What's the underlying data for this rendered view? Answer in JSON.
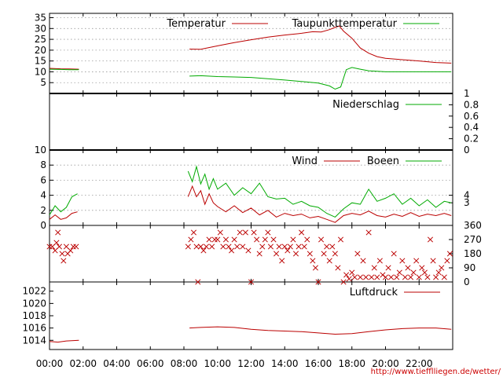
{
  "source_url": "http://www.tiefflliegen.de/wetter/",
  "x_axis": {
    "type": "time",
    "range": [
      "00:00",
      "24:00"
    ],
    "ticks": [
      "00:00",
      "02:00",
      "04:00",
      "06:00",
      "08:00",
      "10:00",
      "12:00",
      "14:00",
      "16:00",
      "18:00",
      "20:00",
      "22:00"
    ]
  },
  "chart_data": [
    {
      "type": "line",
      "panel": "temperature",
      "y_axis_side": "left",
      "ylim": [
        0,
        37
      ],
      "y_ticks": [
        5,
        10,
        15,
        20,
        25,
        30,
        35
      ],
      "grid": true,
      "legend_placement": "top",
      "series": [
        {
          "name": "Temperatur",
          "color": "#bb0000",
          "points": [
            [
              "00:00",
              11.6
            ],
            [
              "00:40",
              11.4
            ],
            [
              "01:10",
              11.3
            ],
            [
              "01:45",
              11.2
            ],
            [
              "08:20",
              20.5
            ],
            [
              "09:00",
              20.4
            ],
            [
              "10:00",
              22.0
            ],
            [
              "11:00",
              23.5
            ],
            [
              "12:00",
              24.8
            ],
            [
              "13:00",
              26.0
            ],
            [
              "14:00",
              27.0
            ],
            [
              "15:00",
              27.8
            ],
            [
              "15:40",
              28.5
            ],
            [
              "16:10",
              28.4
            ],
            [
              "16:40",
              29.5
            ],
            [
              "17:00",
              30.5
            ],
            [
              "17:15",
              31.2
            ],
            [
              "17:30",
              28.8
            ],
            [
              "18:00",
              25.5
            ],
            [
              "18:30",
              21.0
            ],
            [
              "19:00",
              18.6
            ],
            [
              "19:30",
              17.0
            ],
            [
              "20:00",
              16.2
            ],
            [
              "21:00",
              15.6
            ],
            [
              "22:00",
              15.0
            ],
            [
              "23:00",
              14.3
            ],
            [
              "23:55",
              14.0
            ]
          ]
        },
        {
          "name": "Taupunkttemperatur",
          "color": "#00aa00",
          "points": [
            [
              "00:00",
              11.2
            ],
            [
              "00:40",
              11.1
            ],
            [
              "01:10",
              11.0
            ],
            [
              "01:45",
              11.0
            ],
            [
              "08:20",
              8.0
            ],
            [
              "09:00",
              8.2
            ],
            [
              "10:00",
              7.8
            ],
            [
              "11:00",
              7.6
            ],
            [
              "12:00",
              7.4
            ],
            [
              "13:00",
              6.8
            ],
            [
              "14:00",
              6.2
            ],
            [
              "15:00",
              5.5
            ],
            [
              "16:00",
              4.8
            ],
            [
              "16:40",
              3.5
            ],
            [
              "17:00",
              2.0
            ],
            [
              "17:20",
              3.0
            ],
            [
              "17:40",
              11.0
            ],
            [
              "18:00",
              12.0
            ],
            [
              "18:30",
              11.2
            ],
            [
              "19:00",
              10.5
            ],
            [
              "20:00",
              10.0
            ],
            [
              "21:00",
              10.0
            ],
            [
              "22:00",
              10.0
            ],
            [
              "23:55",
              10.0
            ]
          ]
        }
      ]
    },
    {
      "type": "line",
      "panel": "precipitation",
      "y_axis_side": "right",
      "ylim": [
        0,
        1
      ],
      "y_ticks": [
        0,
        0.2,
        0.4,
        0.6,
        0.8,
        1
      ],
      "grid": false,
      "legend_placement": "top-right",
      "series": [
        {
          "name": "Niederschlag",
          "color": "#00aa00",
          "points": [
            [
              "00:00",
              0
            ],
            [
              "24:00",
              0
            ]
          ]
        }
      ]
    },
    {
      "type": "line",
      "panel": "wind",
      "y_axis_side": "left",
      "ylim": [
        0,
        10
      ],
      "y_ticks": [
        0,
        2,
        4,
        6,
        8,
        10
      ],
      "right_ticks": [
        3,
        4
      ],
      "grid": true,
      "legend_placement": "top-right",
      "series": [
        {
          "name": "Wind",
          "color": "#bb0000",
          "points": [
            [
              "00:00",
              0.8
            ],
            [
              "00:20",
              1.4
            ],
            [
              "00:40",
              0.8
            ],
            [
              "01:00",
              1.0
            ],
            [
              "01:20",
              1.6
            ],
            [
              "01:40",
              1.8
            ],
            [
              "08:15",
              3.8
            ],
            [
              "08:30",
              5.2
            ],
            [
              "08:45",
              3.8
            ],
            [
              "09:00",
              4.6
            ],
            [
              "09:15",
              2.8
            ],
            [
              "09:30",
              4.2
            ],
            [
              "09:45",
              3.0
            ],
            [
              "10:00",
              2.5
            ],
            [
              "10:30",
              1.8
            ],
            [
              "11:00",
              2.6
            ],
            [
              "11:30",
              1.7
            ],
            [
              "12:00",
              2.3
            ],
            [
              "12:30",
              1.4
            ],
            [
              "13:00",
              2.0
            ],
            [
              "13:30",
              1.1
            ],
            [
              "14:00",
              1.6
            ],
            [
              "14:30",
              1.3
            ],
            [
              "15:00",
              1.5
            ],
            [
              "15:30",
              1.0
            ],
            [
              "16:00",
              1.2
            ],
            [
              "16:30",
              0.8
            ],
            [
              "17:00",
              0.4
            ],
            [
              "17:30",
              1.3
            ],
            [
              "18:00",
              1.6
            ],
            [
              "18:30",
              1.4
            ],
            [
              "19:00",
              1.9
            ],
            [
              "19:30",
              1.3
            ],
            [
              "20:00",
              1.1
            ],
            [
              "20:30",
              1.5
            ],
            [
              "21:00",
              1.2
            ],
            [
              "21:30",
              1.7
            ],
            [
              "22:00",
              1.2
            ],
            [
              "22:30",
              1.5
            ],
            [
              "23:00",
              1.3
            ],
            [
              "23:30",
              1.6
            ],
            [
              "23:55",
              1.3
            ]
          ]
        },
        {
          "name": "Boeen",
          "color": "#00aa00",
          "points": [
            [
              "00:00",
              1.4
            ],
            [
              "00:20",
              2.6
            ],
            [
              "00:40",
              1.8
            ],
            [
              "01:00",
              2.4
            ],
            [
              "01:20",
              3.8
            ],
            [
              "01:40",
              4.2
            ],
            [
              "08:15",
              7.2
            ],
            [
              "08:30",
              5.8
            ],
            [
              "08:45",
              7.8
            ],
            [
              "09:00",
              5.5
            ],
            [
              "09:15",
              6.8
            ],
            [
              "09:30",
              4.8
            ],
            [
              "09:45",
              6.2
            ],
            [
              "10:00",
              4.8
            ],
            [
              "10:30",
              5.6
            ],
            [
              "11:00",
              4.0
            ],
            [
              "11:30",
              5.0
            ],
            [
              "12:00",
              4.2
            ],
            [
              "12:30",
              5.6
            ],
            [
              "13:00",
              3.8
            ],
            [
              "13:30",
              3.5
            ],
            [
              "14:00",
              3.6
            ],
            [
              "14:30",
              2.8
            ],
            [
              "15:00",
              3.2
            ],
            [
              "15:30",
              2.6
            ],
            [
              "16:00",
              2.4
            ],
            [
              "16:30",
              1.6
            ],
            [
              "17:00",
              1.1
            ],
            [
              "17:30",
              2.2
            ],
            [
              "18:00",
              3.0
            ],
            [
              "18:30",
              2.8
            ],
            [
              "19:00",
              4.8
            ],
            [
              "19:30",
              3.2
            ],
            [
              "20:00",
              3.6
            ],
            [
              "20:30",
              4.2
            ],
            [
              "21:00",
              2.8
            ],
            [
              "21:30",
              3.6
            ],
            [
              "22:00",
              2.6
            ],
            [
              "22:30",
              3.4
            ],
            [
              "23:00",
              2.4
            ],
            [
              "23:30",
              3.2
            ],
            [
              "23:55",
              3.0
            ]
          ]
        }
      ]
    },
    {
      "type": "scatter",
      "panel": "wind_direction",
      "y_axis_side": "right",
      "ylim": [
        0,
        360
      ],
      "y_ticks": [
        0,
        90,
        180,
        270,
        360
      ],
      "marker": "x",
      "color": "#bb0000",
      "points": [
        [
          "00:00",
          225
        ],
        [
          "00:10",
          225
        ],
        [
          "00:20",
          200
        ],
        [
          "00:25",
          250
        ],
        [
          "00:35",
          225
        ],
        [
          "00:45",
          180
        ],
        [
          "00:50",
          135
        ],
        [
          "01:00",
          225
        ],
        [
          "01:05",
          180
        ],
        [
          "01:15",
          200
        ],
        [
          "01:25",
          225
        ],
        [
          "01:35",
          225
        ],
        [
          "00:30",
          315
        ],
        [
          "08:15",
          225
        ],
        [
          "08:25",
          270
        ],
        [
          "08:35",
          315
        ],
        [
          "08:45",
          225
        ],
        [
          "08:50",
          0
        ],
        [
          "09:00",
          225
        ],
        [
          "09:10",
          200
        ],
        [
          "09:20",
          225
        ],
        [
          "09:30",
          270
        ],
        [
          "09:40",
          225
        ],
        [
          "09:50",
          270
        ],
        [
          "10:00",
          270
        ],
        [
          "10:10",
          315
        ],
        [
          "10:20",
          225
        ],
        [
          "10:30",
          270
        ],
        [
          "10:40",
          225
        ],
        [
          "10:50",
          200
        ],
        [
          "11:00",
          270
        ],
        [
          "11:10",
          225
        ],
        [
          "11:20",
          315
        ],
        [
          "11:30",
          225
        ],
        [
          "11:40",
          315
        ],
        [
          "11:50",
          200
        ],
        [
          "12:00",
          0
        ],
        [
          "12:10",
          315
        ],
        [
          "12:20",
          270
        ],
        [
          "12:30",
          180
        ],
        [
          "12:40",
          225
        ],
        [
          "12:50",
          270
        ],
        [
          "13:00",
          315
        ],
        [
          "13:10",
          225
        ],
        [
          "13:20",
          270
        ],
        [
          "13:30",
          180
        ],
        [
          "13:40",
          225
        ],
        [
          "13:50",
          135
        ],
        [
          "14:00",
          225
        ],
        [
          "14:10",
          200
        ],
        [
          "14:20",
          225
        ],
        [
          "14:30",
          270
        ],
        [
          "14:40",
          180
        ],
        [
          "14:50",
          225
        ],
        [
          "15:00",
          315
        ],
        [
          "15:10",
          225
        ],
        [
          "15:20",
          270
        ],
        [
          "15:30",
          180
        ],
        [
          "15:40",
          135
        ],
        [
          "15:50",
          90
        ],
        [
          "16:00",
          0
        ],
        [
          "16:10",
          270
        ],
        [
          "16:20",
          180
        ],
        [
          "16:30",
          225
        ],
        [
          "16:40",
          135
        ],
        [
          "16:50",
          225
        ],
        [
          "17:00",
          180
        ],
        [
          "17:10",
          90
        ],
        [
          "17:20",
          270
        ],
        [
          "17:30",
          0
        ],
        [
          "17:40",
          45
        ],
        [
          "17:50",
          20
        ],
        [
          "18:00",
          60
        ],
        [
          "18:10",
          30
        ],
        [
          "18:20",
          180
        ],
        [
          "18:30",
          30
        ],
        [
          "18:40",
          135
        ],
        [
          "18:50",
          30
        ],
        [
          "19:00",
          315
        ],
        [
          "19:10",
          30
        ],
        [
          "19:20",
          90
        ],
        [
          "19:30",
          30
        ],
        [
          "19:40",
          135
        ],
        [
          "19:50",
          45
        ],
        [
          "20:00",
          30
        ],
        [
          "20:10",
          90
        ],
        [
          "20:20",
          30
        ],
        [
          "20:30",
          180
        ],
        [
          "20:40",
          30
        ],
        [
          "20:50",
          60
        ],
        [
          "21:00",
          135
        ],
        [
          "21:10",
          30
        ],
        [
          "21:20",
          90
        ],
        [
          "21:30",
          30
        ],
        [
          "21:40",
          60
        ],
        [
          "21:50",
          135
        ],
        [
          "22:00",
          30
        ],
        [
          "22:10",
          90
        ],
        [
          "22:20",
          60
        ],
        [
          "22:30",
          30
        ],
        [
          "22:40",
          270
        ],
        [
          "22:50",
          135
        ],
        [
          "23:00",
          30
        ],
        [
          "23:10",
          60
        ],
        [
          "23:20",
          90
        ],
        [
          "23:30",
          30
        ],
        [
          "23:40",
          135
        ],
        [
          "23:50",
          180
        ]
      ]
    },
    {
      "type": "line",
      "panel": "pressure",
      "y_axis_side": "left",
      "ylim": [
        1012.5,
        1023.5
      ],
      "y_ticks": [
        1014,
        1016,
        1018,
        1020,
        1022
      ],
      "grid": false,
      "legend_placement": "top-right",
      "series": [
        {
          "name": "Luftdruck",
          "color": "#bb0000",
          "points": [
            [
              "00:00",
              1013.8
            ],
            [
              "00:30",
              1013.7
            ],
            [
              "01:00",
              1013.9
            ],
            [
              "01:45",
              1014.0
            ],
            [
              "08:20",
              1016.0
            ],
            [
              "09:00",
              1016.1
            ],
            [
              "10:00",
              1016.2
            ],
            [
              "11:00",
              1016.1
            ],
            [
              "12:00",
              1015.8
            ],
            [
              "13:00",
              1015.6
            ],
            [
              "14:00",
              1015.5
            ],
            [
              "15:00",
              1015.4
            ],
            [
              "16:00",
              1015.2
            ],
            [
              "17:00",
              1015.0
            ],
            [
              "18:00",
              1015.1
            ],
            [
              "19:00",
              1015.4
            ],
            [
              "20:00",
              1015.7
            ],
            [
              "21:00",
              1015.9
            ],
            [
              "22:00",
              1016.0
            ],
            [
              "23:00",
              1016.0
            ],
            [
              "23:55",
              1015.8
            ]
          ]
        }
      ]
    }
  ]
}
